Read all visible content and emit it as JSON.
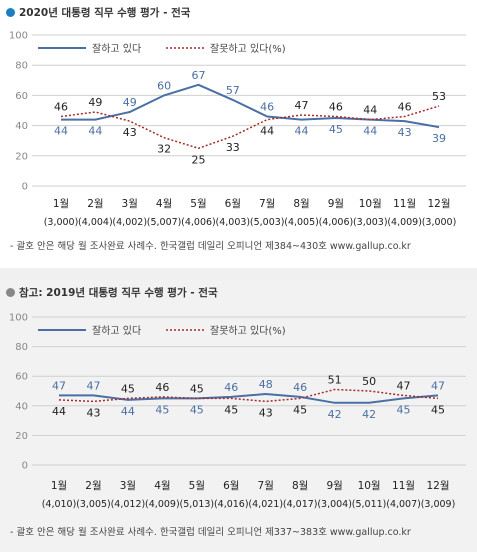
{
  "colors": {
    "approve": "#4a6fa5",
    "disapprove": "#a52a2a",
    "dot1": "#1a7fc1",
    "dot2": "#888888"
  },
  "chart_data": [
    {
      "type": "line",
      "title": "2020년 대통령 직무 수행 평가 - 전국",
      "categories": [
        "1월",
        "2월",
        "3월",
        "4월",
        "5월",
        "6월",
        "7월",
        "8월",
        "9월",
        "10월",
        "11월",
        "12월"
      ],
      "sample_sizes": [
        "(3,000)",
        "(4,004)",
        "(4,002)",
        "(5,007)",
        "(4,006)",
        "(4,003)",
        "(5,003)",
        "(4,005)",
        "(4,006)",
        "(3,003)",
        "(4,009)",
        "(3,000)"
      ],
      "ylim": [
        0,
        100
      ],
      "yticks": [
        0,
        20,
        40,
        60,
        80,
        100
      ],
      "legend": "top-left",
      "series": [
        {
          "name": "잘하고 있다",
          "style": "solid",
          "values": [
            44,
            44,
            49,
            60,
            67,
            57,
            46,
            44,
            45,
            44,
            43,
            39
          ]
        },
        {
          "name": "잘못하고 있다(%)",
          "style": "dotted",
          "values": [
            46,
            49,
            43,
            32,
            25,
            33,
            44,
            47,
            46,
            44,
            46,
            53
          ]
        }
      ],
      "footer": "- 괄호 안은 해당 월 조사완료 사례수. 한국갤럽 데일리 오피니언 제384~430호 www.gallup.co.kr"
    },
    {
      "type": "line",
      "title": "참고: 2019년 대통령 직무 수행 평가 - 전국",
      "categories": [
        "1월",
        "2월",
        "3월",
        "4월",
        "5월",
        "6월",
        "7월",
        "8월",
        "9월",
        "10월",
        "11월",
        "12월"
      ],
      "sample_sizes": [
        "(4,010)",
        "(3,005)",
        "(4,012)",
        "(4,009)",
        "(5,013)",
        "(4,016)",
        "(4,021)",
        "(4,017)",
        "(3,004)",
        "(5,011)",
        "(4,007)",
        "(3,009)"
      ],
      "ylim": [
        0,
        100
      ],
      "yticks": [
        0,
        20,
        40,
        60,
        80,
        100
      ],
      "legend": "top-left",
      "series": [
        {
          "name": "잘하고 있다",
          "style": "solid",
          "values": [
            47,
            47,
            44,
            45,
            45,
            46,
            48,
            46,
            42,
            42,
            45,
            47
          ]
        },
        {
          "name": "잘못하고 있다(%)",
          "style": "dotted",
          "values": [
            44,
            43,
            45,
            46,
            45,
            45,
            43,
            45,
            51,
            50,
            47,
            45
          ]
        }
      ],
      "footer": "- 괄호 안은 해당 월 조사완료 사례수. 한국갤럽 데일리 오피니언 제337~383호 www.gallup.co.kr"
    }
  ]
}
